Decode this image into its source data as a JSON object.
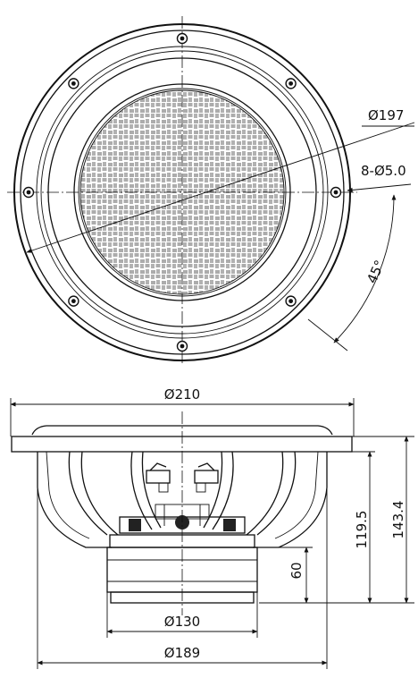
{
  "front_view": {
    "screw_hole_count": 8,
    "angle_label": "45°",
    "labels": {
      "diameter_outer": "Ø197",
      "hole_spec": "8-Ø5.0"
    }
  },
  "side_view": {
    "labels": {
      "width_top": "Ø210",
      "height_total": "143.4",
      "height_mount": "119.5",
      "magnet_height": "60",
      "magnet_diameter": "Ø130",
      "basket_diameter": "Ø189"
    }
  }
}
